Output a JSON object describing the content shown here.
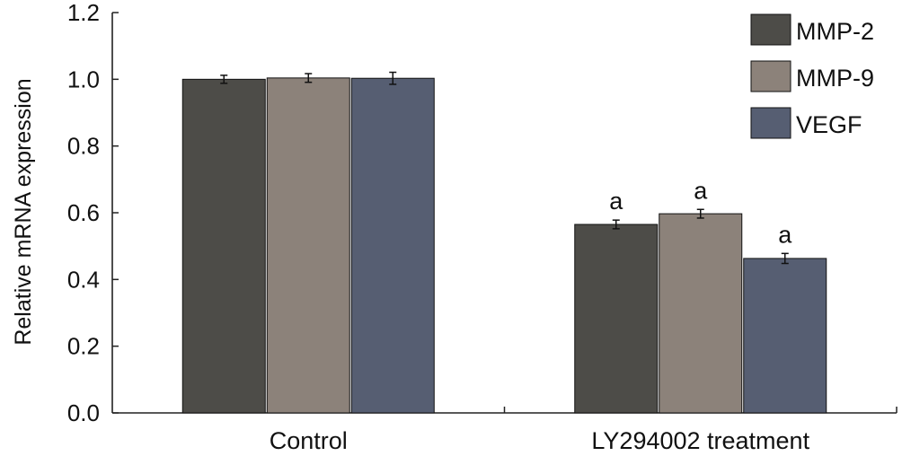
{
  "chart_data": {
    "type": "bar",
    "categories": [
      "Control",
      "LY294002 treatment"
    ],
    "series": [
      {
        "name": "MMP-2",
        "values": [
          1.0,
          0.565
        ],
        "errors": [
          0.012,
          0.013
        ],
        "color": "#4d4c48"
      },
      {
        "name": "MMP-9",
        "values": [
          1.004,
          0.597
        ],
        "errors": [
          0.013,
          0.013
        ],
        "color": "#8c827a"
      },
      {
        "name": "VEGF",
        "values": [
          1.003,
          0.463
        ],
        "errors": [
          0.018,
          0.015
        ],
        "color": "#565e72"
      }
    ],
    "annotations": [
      {
        "category_index": 1,
        "series_index": 0,
        "text": "a"
      },
      {
        "category_index": 1,
        "series_index": 1,
        "text": "a"
      },
      {
        "category_index": 1,
        "series_index": 2,
        "text": "a"
      }
    ],
    "title": "",
    "xlabel": "",
    "ylabel": "Relative mRNA expression",
    "ylim": [
      0,
      1.2
    ],
    "yticks": [
      "0.0",
      "0.2",
      "0.4",
      "0.6",
      "0.8",
      "1.0",
      "1.2"
    ],
    "grid": false,
    "legend_position": "top-right"
  }
}
